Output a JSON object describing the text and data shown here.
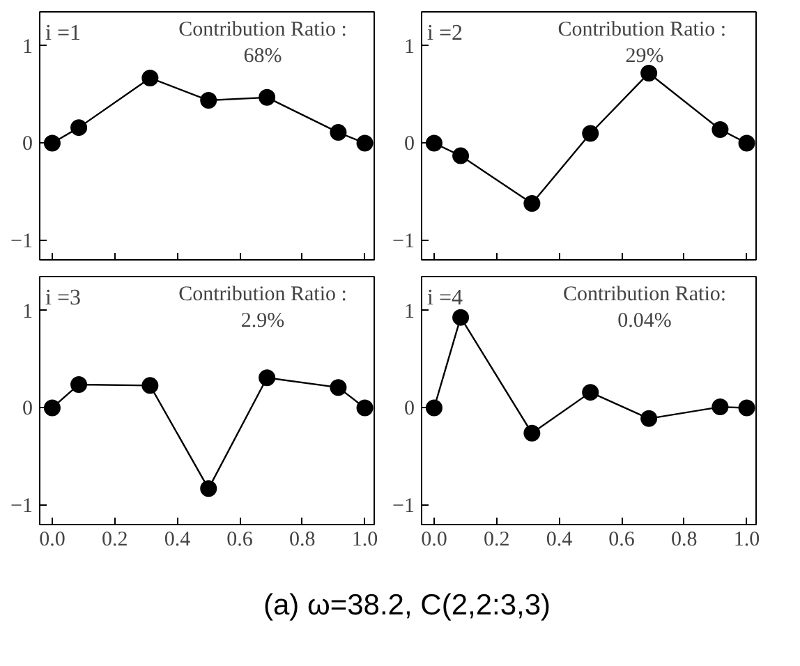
{
  "chart_data": [
    {
      "type": "line",
      "marker": "circle",
      "line_style": "solid",
      "grid": false,
      "tick_labels": "y",
      "x": [
        0,
        0.085,
        0.313,
        0.5,
        0.687,
        0.915,
        1
      ],
      "xlim": [
        -0.04,
        1.03
      ],
      "ylim": [
        -1.2,
        1.35
      ],
      "xticks": [
        {
          "value": 0,
          "label": null
        },
        {
          "value": 0.2,
          "label": null
        },
        {
          "value": 0.4,
          "label": null
        },
        {
          "value": 0.6,
          "label": null
        },
        {
          "value": 0.8,
          "label": null
        },
        {
          "value": 1,
          "label": null
        }
      ],
      "yticks": [
        -1,
        0,
        1
      ],
      "series": [
        {
          "color": "#000000",
          "values": [
            0,
            0.16,
            0.67,
            0.44,
            0.47,
            0.11,
            0
          ]
        }
      ],
      "annotations": [
        "i =1",
        "Contribution Ratio :\n68%"
      ]
    },
    {
      "type": "line",
      "marker": "circle",
      "line_style": "solid",
      "grid": false,
      "tick_labels": "y",
      "x": [
        0,
        0.085,
        0.313,
        0.5,
        0.687,
        0.915,
        1
      ],
      "xlim": [
        -0.04,
        1.03
      ],
      "ylim": [
        -1.2,
        1.35
      ],
      "xticks": [
        {
          "value": 0,
          "label": null
        },
        {
          "value": 0.2,
          "label": null
        },
        {
          "value": 0.4,
          "label": null
        },
        {
          "value": 0.6,
          "label": null
        },
        {
          "value": 0.8,
          "label": null
        },
        {
          "value": 1,
          "label": null
        }
      ],
      "yticks": [
        -1,
        0,
        1
      ],
      "series": [
        {
          "color": "#000000",
          "values": [
            0,
            -0.13,
            -0.62,
            0.1,
            0.72,
            0.14,
            0
          ]
        }
      ],
      "annotations": [
        "i =2",
        "Contribution  Ratio :\n29%"
      ]
    },
    {
      "type": "line",
      "marker": "circle",
      "line_style": "solid",
      "grid": false,
      "x": [
        0,
        0.085,
        0.313,
        0.5,
        0.687,
        0.915,
        1
      ],
      "xlim": [
        -0.04,
        1.03
      ],
      "ylim": [
        -1.2,
        1.35
      ],
      "xticks": [
        {
          "value": 0,
          "label": "0.0"
        },
        {
          "value": 0.2,
          "label": "0.2"
        },
        {
          "value": 0.4,
          "label": "0.4"
        },
        {
          "value": 0.6,
          "label": "0.6"
        },
        {
          "value": 0.8,
          "label": "0.8"
        },
        {
          "value": 1,
          "label": "1.0"
        }
      ],
      "yticks": [
        -1,
        0,
        1
      ],
      "series": [
        {
          "color": "#000000",
          "values": [
            0,
            0.24,
            0.23,
            -0.83,
            0.31,
            0.21,
            0
          ]
        }
      ],
      "annotations": [
        "i =3",
        "Contribution Ratio :\n2.9%"
      ]
    },
    {
      "type": "line",
      "marker": "circle",
      "line_style": "solid",
      "grid": false,
      "x": [
        0,
        0.085,
        0.313,
        0.5,
        0.687,
        0.915,
        1
      ],
      "xlim": [
        -0.04,
        1.03
      ],
      "ylim": [
        -1.2,
        1.35
      ],
      "xticks": [
        {
          "value": 0,
          "label": "0.0"
        },
        {
          "value": 0.2,
          "label": "0.2"
        },
        {
          "value": 0.4,
          "label": "0.4"
        },
        {
          "value": 0.6,
          "label": "0.6"
        },
        {
          "value": 0.8,
          "label": "0.8"
        },
        {
          "value": 1,
          "label": "1.0"
        }
      ],
      "yticks": [
        -1,
        0,
        1
      ],
      "series": [
        {
          "color": "#000000",
          "values": [
            0,
            0.93,
            -0.26,
            0.16,
            -0.11,
            0.01,
            0
          ]
        }
      ],
      "annotations": [
        "i =4",
        "Contribution Ratio:\n0.04%"
      ]
    },
    {
      "type": "other",
      "annotations": [
        "(a) ω=38.2, C(2,2:3,3)"
      ]
    }
  ]
}
